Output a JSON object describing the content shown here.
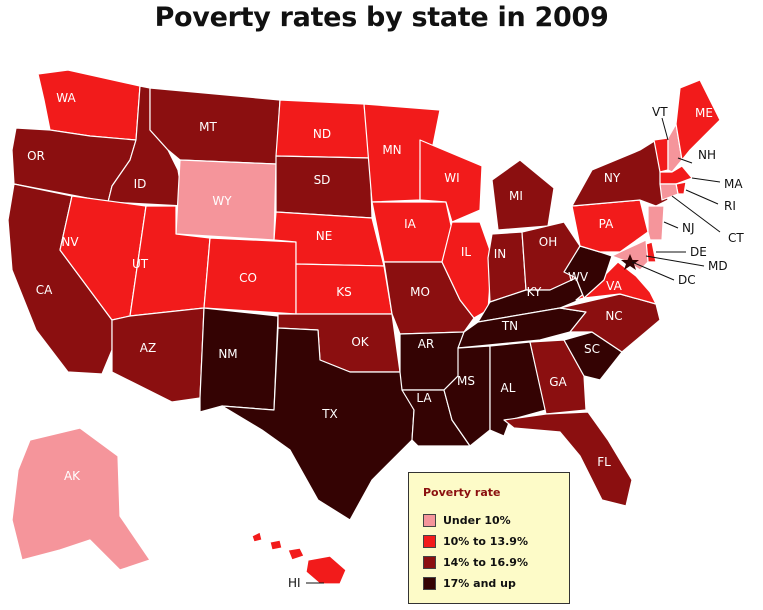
{
  "title": "Poverty rates by state in 2009",
  "colors": {
    "under_10": "#f5959b",
    "10_to_13_9": "#f21b1b",
    "14_to_16_9": "#8b0f10",
    "17_up": "#340303"
  },
  "legend": {
    "title": "Poverty rate",
    "items": [
      {
        "label": "Under 10%",
        "class": "under_10"
      },
      {
        "label": "10% to 13.9%",
        "class": "10_to_13_9"
      },
      {
        "label": "14% to 16.9%",
        "class": "14_to_16_9"
      },
      {
        "label": "17% and up",
        "class": "17_up"
      }
    ]
  },
  "states": {
    "WA": {
      "label": "WA",
      "class": "10_to_13_9"
    },
    "OR": {
      "label": "OR",
      "class": "14_to_16_9"
    },
    "CA": {
      "label": "CA",
      "class": "14_to_16_9"
    },
    "ID": {
      "label": "ID",
      "class": "14_to_16_9"
    },
    "NV": {
      "label": "NV",
      "class": "10_to_13_9"
    },
    "MT": {
      "label": "MT",
      "class": "14_to_16_9"
    },
    "WY": {
      "label": "WY",
      "class": "under_10"
    },
    "UT": {
      "label": "UT",
      "class": "10_to_13_9"
    },
    "AZ": {
      "label": "AZ",
      "class": "14_to_16_9"
    },
    "CO": {
      "label": "CO",
      "class": "10_to_13_9"
    },
    "NM": {
      "label": "NM",
      "class": "17_up"
    },
    "ND": {
      "label": "ND",
      "class": "10_to_13_9"
    },
    "SD": {
      "label": "SD",
      "class": "14_to_16_9"
    },
    "NE": {
      "label": "NE",
      "class": "10_to_13_9"
    },
    "KS": {
      "label": "KS",
      "class": "10_to_13_9"
    },
    "OK": {
      "label": "OK",
      "class": "14_to_16_9"
    },
    "TX": {
      "label": "TX",
      "class": "17_up"
    },
    "MN": {
      "label": "MN",
      "class": "10_to_13_9"
    },
    "IA": {
      "label": "IA",
      "class": "10_to_13_9"
    },
    "MO": {
      "label": "MO",
      "class": "14_to_16_9"
    },
    "AR": {
      "label": "AR",
      "class": "17_up"
    },
    "LA": {
      "label": "LA",
      "class": "17_up"
    },
    "WI": {
      "label": "WI",
      "class": "10_to_13_9"
    },
    "IL": {
      "label": "IL",
      "class": "10_to_13_9"
    },
    "MI": {
      "label": "MI",
      "class": "14_to_16_9"
    },
    "IN": {
      "label": "IN",
      "class": "14_to_16_9"
    },
    "OH": {
      "label": "OH",
      "class": "14_to_16_9"
    },
    "KY": {
      "label": "KY",
      "class": "17_up"
    },
    "TN": {
      "label": "TN",
      "class": "17_up"
    },
    "MS": {
      "label": "MS",
      "class": "17_up"
    },
    "AL": {
      "label": "AL",
      "class": "17_up"
    },
    "GA": {
      "label": "GA",
      "class": "14_to_16_9"
    },
    "FL": {
      "label": "FL",
      "class": "14_to_16_9"
    },
    "SC": {
      "label": "SC",
      "class": "17_up"
    },
    "NC": {
      "label": "NC",
      "class": "14_to_16_9"
    },
    "VA": {
      "label": "VA",
      "class": "10_to_13_9"
    },
    "WV": {
      "label": "WV",
      "class": "17_up"
    },
    "PA": {
      "label": "PA",
      "class": "10_to_13_9"
    },
    "NY": {
      "label": "NY",
      "class": "14_to_16_9"
    },
    "VT": {
      "label": "VT",
      "class": "10_to_13_9"
    },
    "NH": {
      "label": "NH",
      "class": "under_10"
    },
    "ME": {
      "label": "ME",
      "class": "10_to_13_9"
    },
    "MA": {
      "label": "MA",
      "class": "10_to_13_9"
    },
    "RI": {
      "label": "RI",
      "class": "10_to_13_9"
    },
    "CT": {
      "label": "CT",
      "class": "under_10"
    },
    "NJ": {
      "label": "NJ",
      "class": "under_10"
    },
    "DE": {
      "label": "DE",
      "class": "10_to_13_9"
    },
    "MD": {
      "label": "MD",
      "class": "under_10"
    },
    "DC": {
      "label": "DC",
      "class": "17_up"
    },
    "AK": {
      "label": "AK",
      "class": "under_10"
    },
    "HI": {
      "label": "HI",
      "class": "10_to_13_9"
    }
  }
}
